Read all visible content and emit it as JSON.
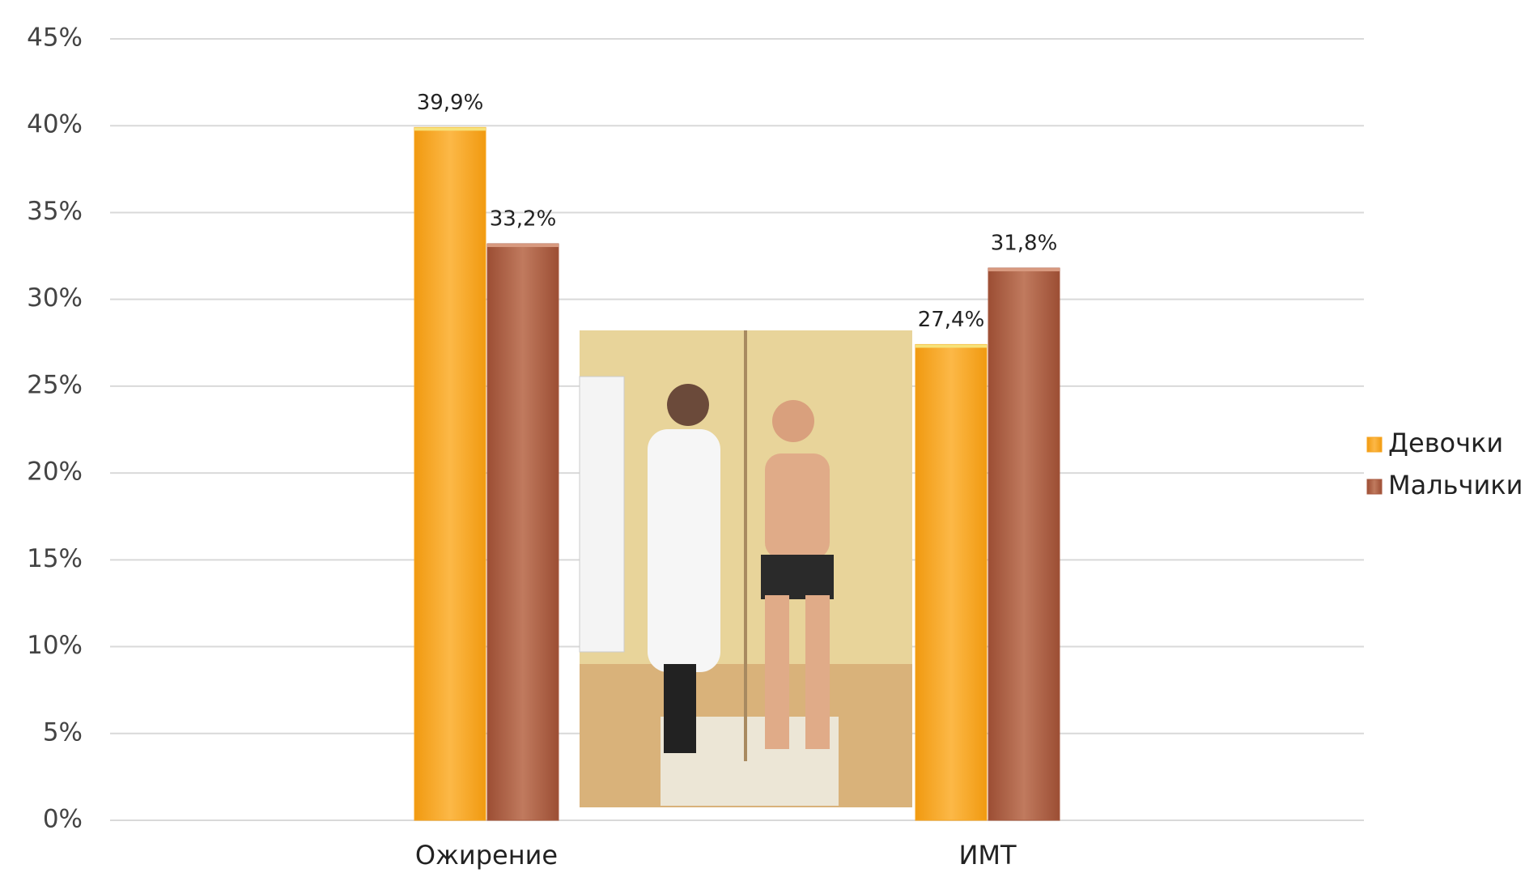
{
  "chart_data": {
    "type": "bar",
    "categories": [
      "Ожирение",
      "ИМТ"
    ],
    "series": [
      {
        "name": "Девочки",
        "color": "#f7a520",
        "values": [
          39.9,
          27.4
        ],
        "value_labels": [
          "39,9%",
          "27,4%"
        ]
      },
      {
        "name": "Мальчики",
        "color": "#a85a40",
        "values": [
          33.2,
          31.8
        ],
        "value_labels": [
          "33,2%",
          "31,8%"
        ]
      }
    ],
    "ylim": [
      0,
      45
    ],
    "yticks": [
      {
        "value": 0,
        "label": "0%"
      },
      {
        "value": 5,
        "label": "5%"
      },
      {
        "value": 10,
        "label": "10%"
      },
      {
        "value": 15,
        "label": "15%"
      },
      {
        "value": 20,
        "label": "20%"
      },
      {
        "value": 25,
        "label": "25%"
      },
      {
        "value": 30,
        "label": "30%"
      },
      {
        "value": 35,
        "label": "35%"
      },
      {
        "value": 40,
        "label": "40%"
      },
      {
        "value": 45,
        "label": "45%"
      }
    ],
    "grid": true,
    "legend": "right"
  }
}
